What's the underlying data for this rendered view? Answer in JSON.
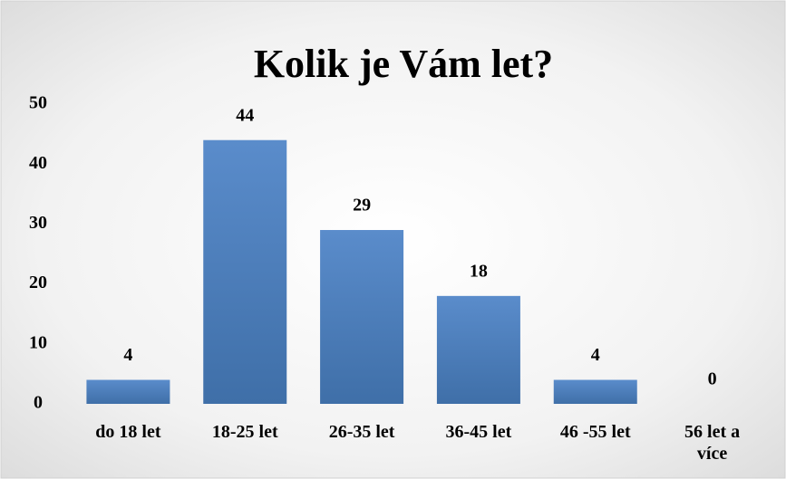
{
  "chart_data": {
    "type": "bar",
    "title": "Kolik je Vám let?",
    "categories": [
      "do 18 let",
      "18-25 let",
      "26-35 let",
      "36-45 let",
      "46 -55 let",
      "56 let a více"
    ],
    "values": [
      4,
      44,
      29,
      18,
      4,
      0
    ],
    "color": "#4f81bd",
    "ylim": [
      0,
      50
    ],
    "yticks": [
      0,
      10,
      20,
      30,
      40,
      50
    ],
    "grid": false,
    "data_labels": true
  }
}
